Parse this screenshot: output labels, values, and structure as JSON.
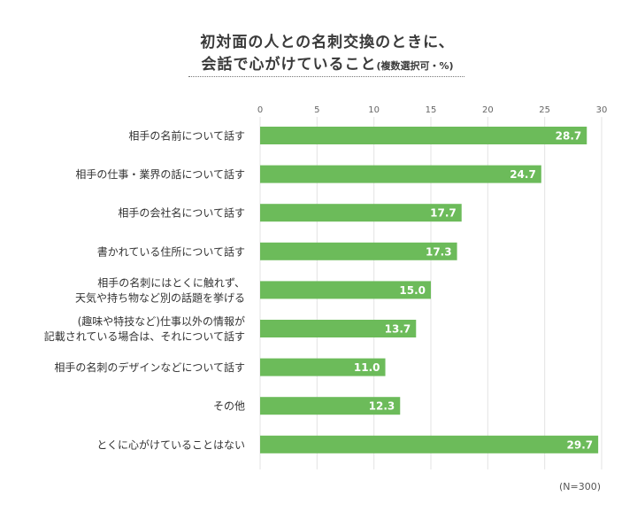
{
  "title": {
    "line1": "初対面の人との名刺交換のときに、",
    "line2": "会話で心がけていること",
    "line2_sub": "(複数選択可・%)"
  },
  "note": "(N=300)",
  "chart_data": {
    "type": "bar",
    "orientation": "horizontal",
    "categories": [
      [
        "相手の名前について話す"
      ],
      [
        "相手の仕事・業界の話について話す"
      ],
      [
        "相手の会社名について話す"
      ],
      [
        "書かれている住所について話す"
      ],
      [
        "相手の名刺にはとくに触れず、",
        "天気や持ち物など別の話題を挙げる"
      ],
      [
        "(趣味や特技など)仕事以外の情報が",
        "記載されている場合は、それについて話す"
      ],
      [
        "相手の名刺のデザインなどについて話す"
      ],
      [
        "その他"
      ],
      [
        "とくに心がけていることはない"
      ]
    ],
    "values": [
      28.7,
      24.7,
      17.7,
      17.3,
      15.0,
      13.7,
      11.0,
      12.3,
      29.7
    ],
    "value_labels": [
      "28.7",
      "24.7",
      "17.7",
      "17.3",
      "15.0",
      "13.7",
      "11.0",
      "12.3",
      "29.7"
    ],
    "xlim": [
      0,
      30
    ],
    "ticks": [
      0,
      5,
      10,
      15,
      20,
      25,
      30
    ],
    "grid": true,
    "bar_color": "#6cbb5a",
    "grid_color": "#e3e3e3"
  }
}
